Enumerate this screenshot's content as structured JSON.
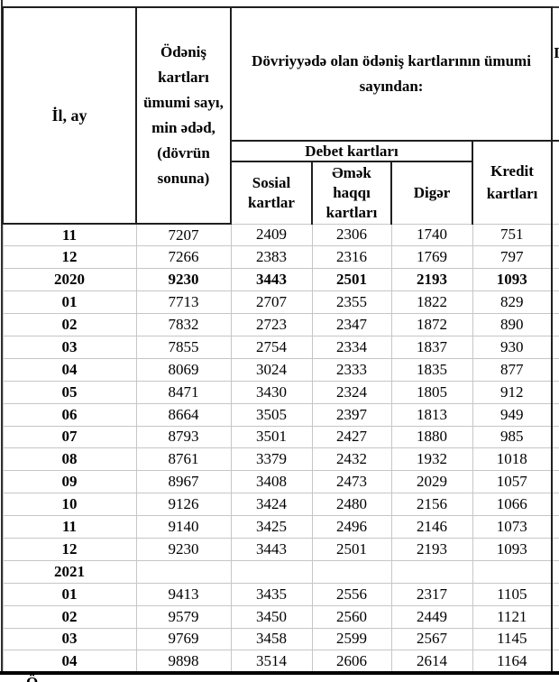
{
  "table": {
    "header": {
      "col_period": "İl, ay",
      "col_total": "Ödəniş\nkartları\nümumi sayı,\nmin ədəd,\n(dövrün\nsonuna)",
      "col_circulation": "Dövriyyədə olan ödəniş kartlarının ümumi sayından:",
      "col_debit": "Debet kartları",
      "col_social": "Sosial\nkartlar",
      "col_salary": "Əmək\nhaqqı\nkartları",
      "col_other": "Digər",
      "col_credit": "Kredit\nkartları",
      "cut_column_fragment": "I"
    },
    "rows": [
      {
        "period": "11",
        "total": "7207",
        "social": "2409",
        "salary": "2306",
        "other": "1740",
        "credit": "751",
        "bold": false
      },
      {
        "period": "12",
        "total": "7266",
        "social": "2383",
        "salary": "2316",
        "other": "1769",
        "credit": "797",
        "bold": false
      },
      {
        "period": "2020",
        "total": "9230",
        "social": "3443",
        "salary": "2501",
        "other": "2193",
        "credit": "1093",
        "bold": true
      },
      {
        "period": "01",
        "total": "7713",
        "social": "2707",
        "salary": "2355",
        "other": "1822",
        "credit": "829",
        "bold": false
      },
      {
        "period": "02",
        "total": "7832",
        "social": "2723",
        "salary": "2347",
        "other": "1872",
        "credit": "890",
        "bold": false
      },
      {
        "period": "03",
        "total": "7855",
        "social": "2754",
        "salary": "2334",
        "other": "1837",
        "credit": "930",
        "bold": false
      },
      {
        "period": "04",
        "total": "8069",
        "social": "3024",
        "salary": "2333",
        "other": "1835",
        "credit": "877",
        "bold": false
      },
      {
        "period": "05",
        "total": "8471",
        "social": "3430",
        "salary": "2324",
        "other": "1805",
        "credit": "912",
        "bold": false
      },
      {
        "period": "06",
        "total": "8664",
        "social": "3505",
        "salary": "2397",
        "other": "1813",
        "credit": "949",
        "bold": false
      },
      {
        "period": "07",
        "total": "8793",
        "social": "3501",
        "salary": "2427",
        "other": "1880",
        "credit": "985",
        "bold": false
      },
      {
        "period": "08",
        "total": "8761",
        "social": "3379",
        "salary": "2432",
        "other": "1932",
        "credit": "1018",
        "bold": false
      },
      {
        "period": "09",
        "total": "8967",
        "social": "3408",
        "salary": "2473",
        "other": "2029",
        "credit": "1057",
        "bold": false
      },
      {
        "period": "10",
        "total": "9126",
        "social": "3424",
        "salary": "2480",
        "other": "2156",
        "credit": "1066",
        "bold": false
      },
      {
        "period": "11",
        "total": "9140",
        "social": "3425",
        "salary": "2496",
        "other": "2146",
        "credit": "1073",
        "bold": false
      },
      {
        "period": "12",
        "total": "9230",
        "social": "3443",
        "salary": "2501",
        "other": "2193",
        "credit": "1093",
        "bold": false
      },
      {
        "period": "2021",
        "total": "",
        "social": "",
        "salary": "",
        "other": "",
        "credit": "",
        "bold": true
      },
      {
        "period": "01",
        "total": "9413",
        "social": "3435",
        "salary": "2556",
        "other": "2317",
        "credit": "1105",
        "bold": false
      },
      {
        "period": "02",
        "total": "9579",
        "social": "3450",
        "salary": "2560",
        "other": "2449",
        "credit": "1121",
        "bold": false
      },
      {
        "period": "03",
        "total": "9769",
        "social": "3458",
        "salary": "2599",
        "other": "2567",
        "credit": "1145",
        "bold": false
      },
      {
        "period": "04",
        "total": "9898",
        "social": "3514",
        "salary": "2606",
        "other": "2614",
        "credit": "1164",
        "bold": false
      }
    ],
    "footnote_fragment": "Ö"
  }
}
